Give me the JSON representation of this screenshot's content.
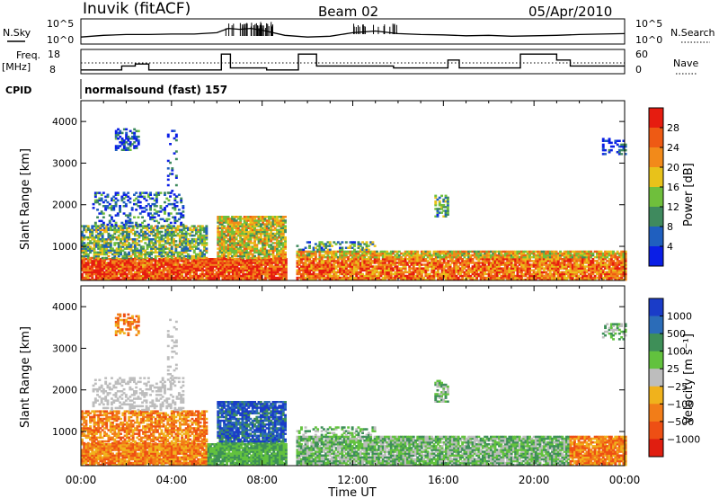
{
  "header": {
    "station": "Inuvik (fitACF)",
    "beam": "Beam 02",
    "date": "05/Apr/2010"
  },
  "noise_panel": {
    "left_label": "N.Sky",
    "right_label": "N.Search",
    "left_ticks": [
      "10^5",
      "10^0"
    ],
    "right_ticks": [
      "10^5",
      "10^0"
    ]
  },
  "freq_panel": {
    "left_label_1": "Freq.",
    "left_label_2": "[MHz]",
    "right_label": "Nave",
    "left_ticks": [
      "18",
      "8"
    ],
    "right_ticks": [
      "60",
      "0"
    ]
  },
  "cpid": {
    "label": "CPID",
    "value": "normalsound (fast) 157"
  },
  "axes": {
    "ylabel": "Slant Range [km]",
    "xlabel": "Time UT",
    "y_ticks": [
      "1000",
      "2000",
      "3000",
      "4000"
    ],
    "x_ticks": [
      "00:00",
      "04:00",
      "08:00",
      "12:00",
      "16:00",
      "20:00",
      "00:00"
    ]
  },
  "power_scale": {
    "label": "Power [dB]",
    "ticks": [
      "4",
      "8",
      "12",
      "16",
      "20",
      "24",
      "28"
    ],
    "colors": [
      "#0a1ee6",
      "#1f5fbf",
      "#3f8a5e",
      "#6fbf3c",
      "#e8c21a",
      "#f28a1a",
      "#ee5a14",
      "#e61c10"
    ]
  },
  "velocity_scale": {
    "label": "Velocity [m s⁻¹]",
    "ticks": [
      "1000",
      "500",
      "100",
      "25",
      "−25",
      "−100",
      "−500",
      "−1000"
    ],
    "colors": [
      "#1a3cc8",
      "#2b6cb8",
      "#3e8f58",
      "#62c23e",
      "#bdbdbd",
      "#f0b21c",
      "#f27d18",
      "#ee4f14",
      "#e01e10"
    ]
  },
  "chart_data": [
    {
      "type": "line",
      "name": "noise",
      "ylim_left": [
        0,
        5
      ],
      "x_range_hours": [
        0,
        24
      ],
      "y_scale": "log10",
      "series": [
        {
          "x": [
            0,
            1,
            2,
            3,
            4,
            5,
            6,
            6.5,
            7,
            7.5,
            8,
            9,
            10,
            11,
            12,
            13,
            14,
            15,
            16,
            17,
            18,
            19,
            20,
            21,
            22,
            23,
            24
          ],
          "values": [
            1.2,
            1.6,
            1.8,
            1.8,
            1.9,
            1.9,
            2.2,
            3.2,
            3.0,
            3.2,
            2.8,
            1.6,
            1.2,
            1.4,
            2.2,
            2.6,
            2.0,
            1.8,
            1.7,
            1.5,
            1.6,
            1.4,
            1.5,
            1.6,
            1.8,
            1.9,
            2.0
          ]
        }
      ]
    },
    {
      "type": "line",
      "name": "frequency",
      "ylim_left": [
        8,
        18
      ],
      "ylim_right": [
        0,
        60
      ],
      "x_range_hours": [
        0,
        24
      ],
      "series": [
        {
          "x": [
            0,
            1.8,
            1.8,
            2.4,
            2.4,
            3.0,
            3.0,
            6.2,
            6.2,
            6.6,
            6.6,
            8.2,
            8.2,
            9.6,
            9.6,
            10.4,
            10.4,
            13.8,
            13.8,
            16.2,
            16.2,
            16.7,
            16.7,
            19.4,
            19.4,
            21.0,
            21.0,
            21.6,
            21.6,
            24
          ],
          "values": [
            9,
            9,
            11,
            11,
            12,
            12,
            9,
            9,
            17,
            17,
            10,
            10,
            9,
            9,
            17,
            17,
            11,
            11,
            10,
            10,
            14,
            14,
            10,
            10,
            17,
            17,
            14,
            14,
            11,
            11
          ]
        }
      ]
    },
    {
      "type": "heatmap",
      "name": "power",
      "x_range_hours": [
        0,
        24
      ],
      "ylim": [
        180,
        4500
      ],
      "value_range": [
        0,
        30
      ]
    },
    {
      "type": "heatmap",
      "name": "velocity",
      "x_range_hours": [
        0,
        24
      ],
      "ylim": [
        180,
        4500
      ],
      "value_range": [
        -1000,
        1000
      ]
    }
  ]
}
